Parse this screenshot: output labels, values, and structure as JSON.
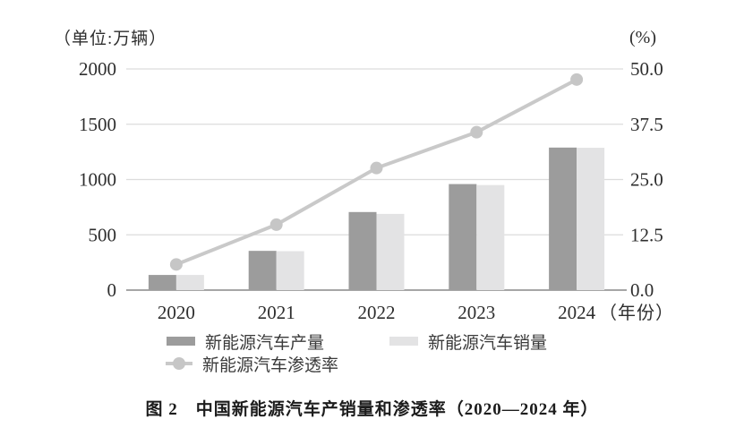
{
  "figure": {
    "caption": "图 2　中国新能源汽车产销量和渗透率（2020—2024 年）"
  },
  "chart_data": {
    "type": "bar",
    "title": "中国新能源汽车产销量和渗透率（2020—2024 年）",
    "categories": [
      "2020",
      "2021",
      "2022",
      "2023",
      "2024"
    ],
    "x_axis_suffix": "（年份）",
    "left_axis": {
      "label": "（单位:万辆）",
      "min": 0,
      "max": 2000,
      "ticks": [
        "2000",
        "1500",
        "1000",
        "500",
        "0"
      ]
    },
    "right_axis": {
      "label": "(%)",
      "min": 0,
      "max": 50,
      "ticks": [
        "50.0",
        "37.5",
        "25.0",
        "12.5",
        "0.0"
      ]
    },
    "grid": true,
    "legend_position": "bottom",
    "series": [
      {
        "name": "新能源汽车产量",
        "type": "bar",
        "axis": "left",
        "color": "#9c9c9c",
        "values": [
          137,
          355,
          706,
          959,
          1289
        ]
      },
      {
        "name": "新能源汽车销量",
        "type": "bar",
        "axis": "left",
        "color": "#e3e3e4",
        "values": [
          137,
          352,
          689,
          950,
          1287
        ]
      },
      {
        "name": "新能源汽车渗透率",
        "type": "line",
        "axis": "right",
        "color": "#c9c9c9",
        "marker_color": "#c6c6c6",
        "values": [
          5.8,
          14.8,
          27.6,
          35.7,
          47.6
        ]
      }
    ],
    "colors": {
      "grid": "#dcdcdc",
      "baseline": "#9a9a9a",
      "text": "#2e2e2e"
    }
  }
}
